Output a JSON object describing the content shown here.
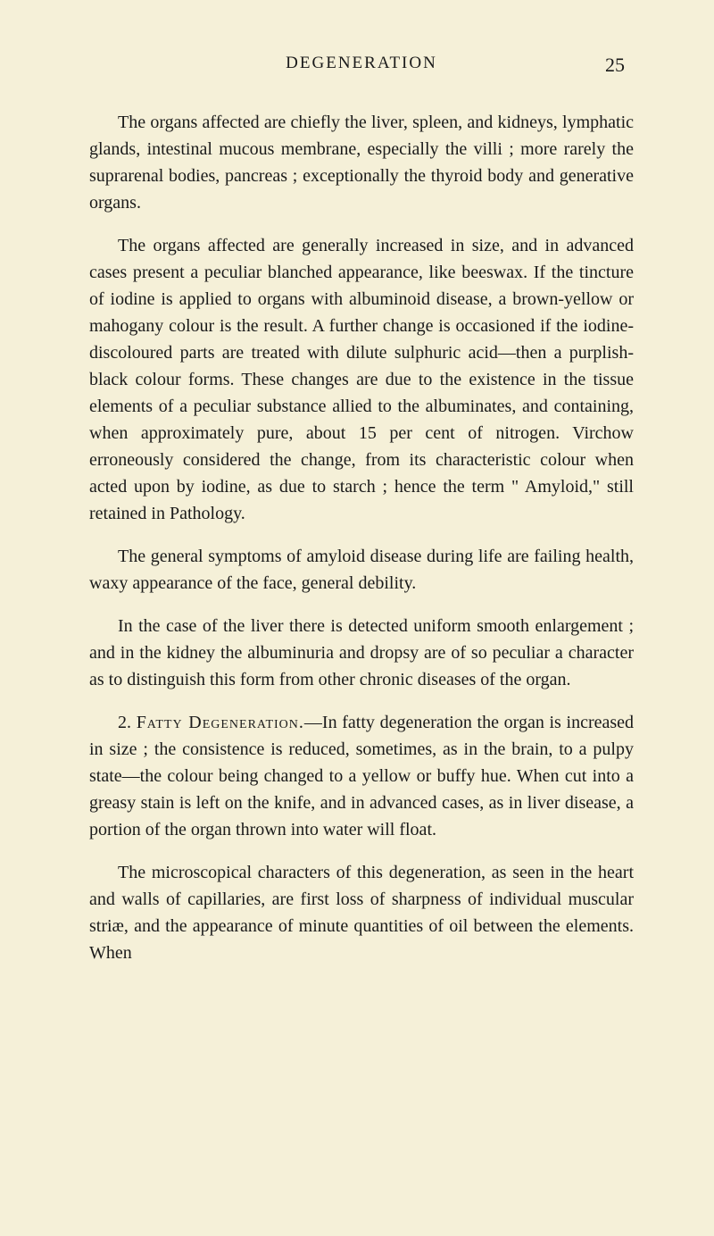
{
  "page": {
    "header_title": "DEGENERATION",
    "page_number": "25",
    "background_color": "#f5f0d8",
    "text_color": "#1a1a1a",
    "font_family": "Georgia, 'Times New Roman', serif",
    "body_fontsize": 20,
    "header_fontsize": 19,
    "pagenum_fontsize": 22
  },
  "paragraphs": {
    "p1": "The organs affected are chiefly the liver, spleen, and kidneys, lymphatic glands, intestinal mucous membrane, especially the villi ; more rarely the suprarenal bodies, pancreas ; exceptionally the thyroid body and generative organs.",
    "p2": "The organs affected are generally increased in size, and in advanced cases present a peculiar blanched appearance, like beeswax. If the tincture of iodine is applied to organs with albuminoid disease, a brown-yellow or mahogany colour is the result. A further change is occasioned if the iodine-discoloured parts are treated with dilute sulphuric acid—then a purplish-black colour forms. These changes are due to the existence in the tissue elements of a peculiar substance allied to the albuminates, and containing, when approximately pure, about 15 per cent of nitrogen. Virchow erroneously considered the change, from its characteristic colour when acted upon by iodine, as due to starch ; hence the term \" Amyloid,\" still retained in Pathology.",
    "p3": "The general symptoms of amyloid disease during life are failing health, waxy appearance of the face, general debility.",
    "p4": "In the case of the liver there is detected uniform smooth enlargement ; and in the kidney the albuminuria and dropsy are of so peculiar a character as to distinguish this form from other chronic diseases of the organ.",
    "p5_lead": "2. ",
    "p5_smallcaps": "Fatty Degeneration.",
    "p5_rest": "—In fatty degeneration the organ is increased in size ; the consistence is reduced, sometimes, as in the brain, to a pulpy state—the colour being changed to a yellow or buffy hue. When cut into a greasy stain is left on the knife, and in advanced cases, as in liver disease, a portion of the organ thrown into water will float.",
    "p6": "The microscopical characters of this degeneration, as seen in the heart and walls of capillaries, are first loss of sharpness of individual muscular striæ, and the appearance of minute quantities of oil between the elements. When"
  }
}
